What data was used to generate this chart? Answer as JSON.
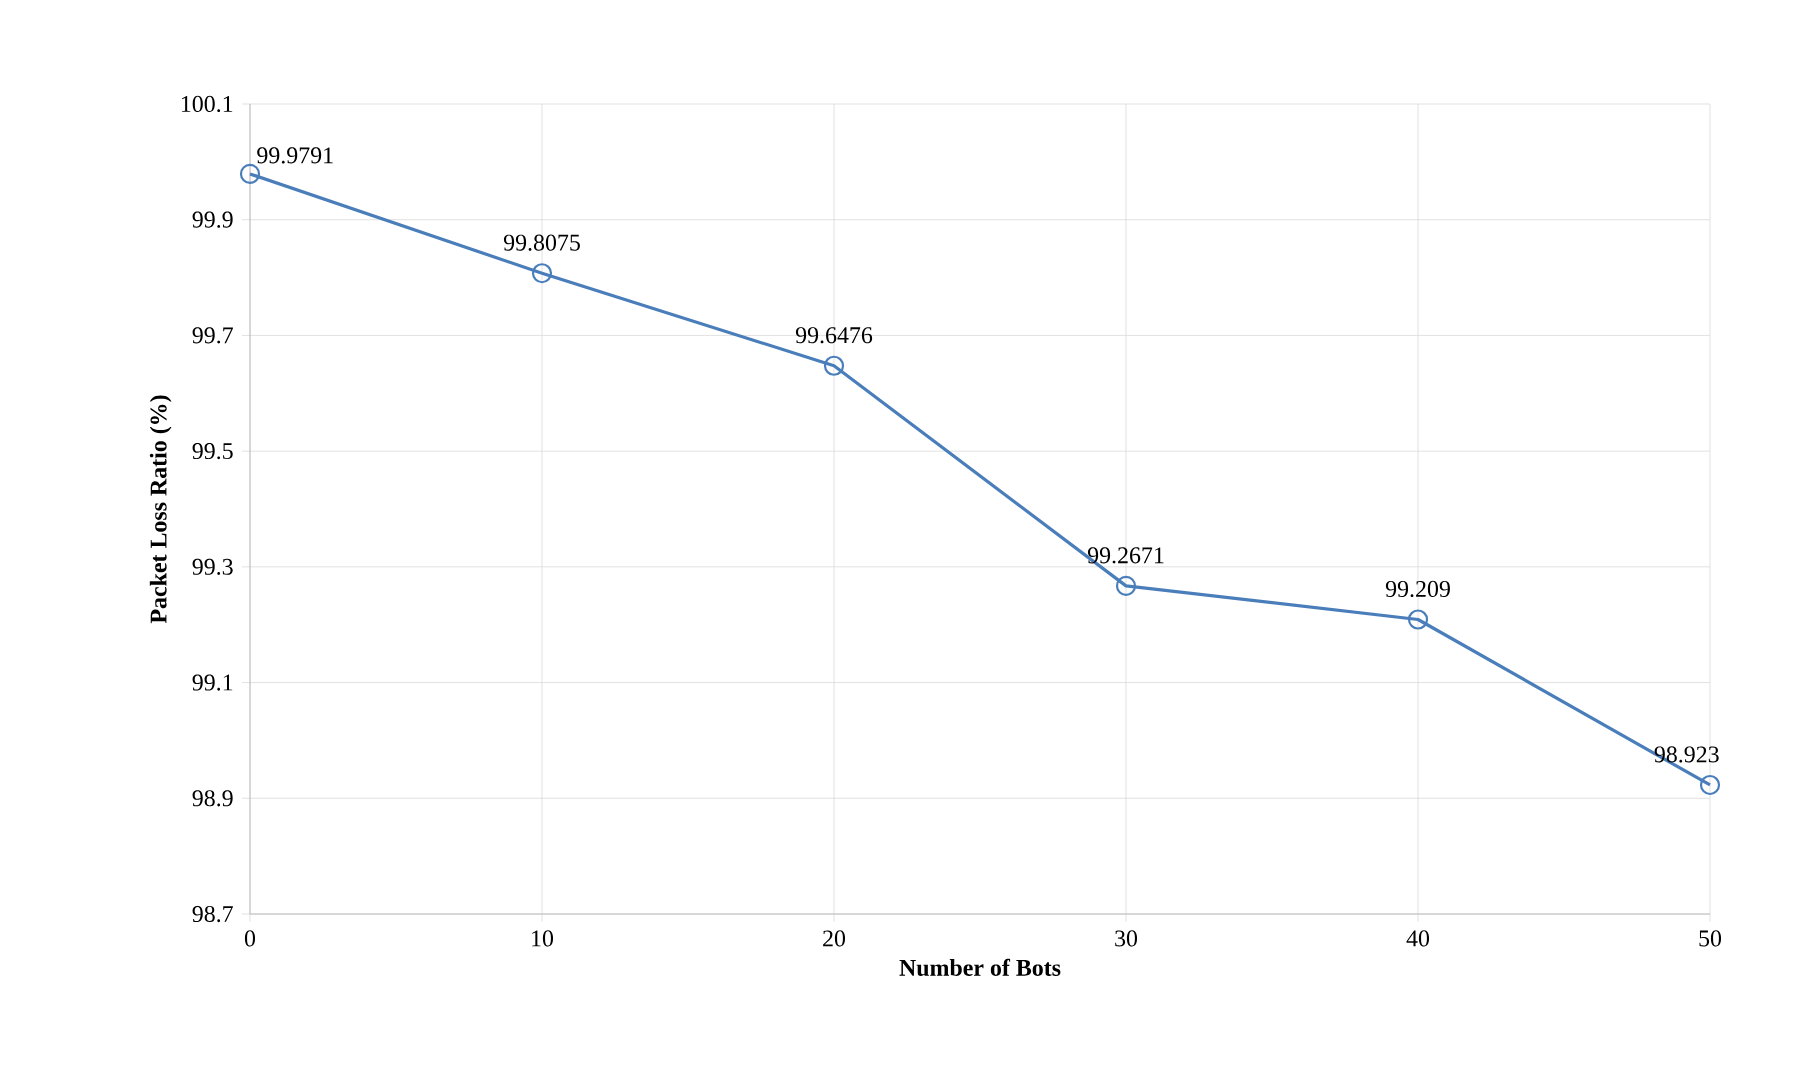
{
  "chart_data": {
    "type": "line",
    "xlabel": "Number of Bots",
    "ylabel": "Packet Loss Ratio (%)",
    "x": [
      0,
      10,
      20,
      30,
      40,
      50
    ],
    "series": [
      {
        "color": "#4a7ebb",
        "values": [
          99.9791,
          99.8075,
          99.6476,
          99.2671,
          99.209,
          98.923
        ]
      }
    ],
    "xlim": [
      0,
      50
    ],
    "xticks": [
      0,
      10,
      20,
      30,
      40,
      50
    ],
    "ylim": [
      98.7,
      100.1
    ],
    "yticks": [
      98.7,
      98.9,
      99.1,
      99.3,
      99.5,
      99.7,
      99.9,
      100.1
    ],
    "grid": true,
    "marker": "circle",
    "line_style": "solid",
    "data_labels": true
  }
}
